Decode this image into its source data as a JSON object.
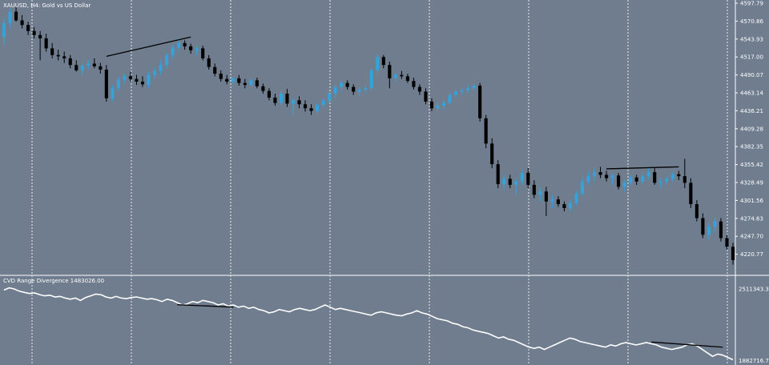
{
  "chart_data": [
    {
      "type": "candlestick",
      "title": "XAUUSD, H4:  Gold vs US Dollar",
      "y_ticks": [
        "4597.79",
        "4570.86",
        "4543.93",
        "4517.00",
        "4490.07",
        "4463.14",
        "4436.21",
        "4409.28",
        "4382.35",
        "4355.42",
        "4328.49",
        "4301.56",
        "4274.63",
        "4247.70",
        "4220.77"
      ],
      "ylim": [
        4193.84,
        4597.79
      ],
      "colors": {
        "bull": "#35a2d9",
        "bear": "#000000",
        "background": "#6f7d8f",
        "grid": "#ffffff"
      },
      "candles": [
        [
          4547,
          4575,
          4535,
          4568
        ],
        [
          4568,
          4590,
          4560,
          4585
        ],
        [
          4585,
          4592,
          4570,
          4572
        ],
        [
          4572,
          4580,
          4560,
          4565
        ],
        [
          4565,
          4570,
          4550,
          4556
        ],
        [
          4556,
          4562,
          4545,
          4550
        ],
        [
          4550,
          4556,
          4512,
          4545
        ],
        [
          4545,
          4552,
          4525,
          4530
        ],
        [
          4530,
          4538,
          4515,
          4520
        ],
        [
          4520,
          4528,
          4512,
          4518
        ],
        [
          4518,
          4525,
          4508,
          4515
        ],
        [
          4515,
          4520,
          4500,
          4505
        ],
        [
          4505,
          4512,
          4495,
          4497
        ],
        [
          4497,
          4506,
          4490,
          4504
        ],
        [
          4504,
          4512,
          4498,
          4507
        ],
        [
          4507,
          4515,
          4500,
          4503
        ],
        [
          4503,
          4508,
          4492,
          4498
        ],
        [
          4498,
          4505,
          4450,
          4455
        ],
        [
          4455,
          4475,
          4450,
          4470
        ],
        [
          4470,
          4488,
          4465,
          4483
        ],
        [
          4483,
          4492,
          4478,
          4488
        ],
        [
          4488,
          4495,
          4480,
          4484
        ],
        [
          4484,
          4490,
          4475,
          4480
        ],
        [
          4480,
          4488,
          4472,
          4476
        ],
        [
          4476,
          4495,
          4470,
          4490
        ],
        [
          4490,
          4502,
          4485,
          4496
        ],
        [
          4496,
          4512,
          4490,
          4505
        ],
        [
          4505,
          4523,
          4500,
          4520
        ],
        [
          4520,
          4535,
          4515,
          4531
        ],
        [
          4531,
          4545,
          4525,
          4538
        ],
        [
          4538,
          4542,
          4528,
          4533
        ],
        [
          4533,
          4537,
          4522,
          4527
        ],
        [
          4527,
          4534,
          4520,
          4530
        ],
        [
          4530,
          4534,
          4512,
          4515
        ],
        [
          4515,
          4520,
          4498,
          4502
        ],
        [
          4502,
          4507,
          4488,
          4492
        ],
        [
          4492,
          4497,
          4480,
          4484
        ],
        [
          4484,
          4490,
          4476,
          4480
        ],
        [
          4480,
          4487,
          4476,
          4485
        ],
        [
          4485,
          4490,
          4474,
          4478
        ],
        [
          4478,
          4484,
          4470,
          4475
        ],
        [
          4475,
          4485,
          4472,
          4482
        ],
        [
          4482,
          4486,
          4470,
          4473
        ],
        [
          4473,
          4477,
          4462,
          4466
        ],
        [
          4466,
          4470,
          4452,
          4456
        ],
        [
          4456,
          4462,
          4444,
          4448
        ],
        [
          4448,
          4466,
          4444,
          4462
        ],
        [
          4462,
          4469,
          4442,
          4447
        ],
        [
          4447,
          4455,
          4430,
          4452
        ],
        [
          4452,
          4458,
          4440,
          4446
        ],
        [
          4446,
          4452,
          4435,
          4440
        ],
        [
          4440,
          4446,
          4430,
          4436
        ],
        [
          4436,
          4448,
          4432,
          4445
        ],
        [
          4445,
          4455,
          4440,
          4452
        ],
        [
          4452,
          4465,
          4447,
          4462
        ],
        [
          4462,
          4476,
          4456,
          4472
        ],
        [
          4472,
          4482,
          4466,
          4478
        ],
        [
          4478,
          4482,
          4468,
          4472
        ],
        [
          4472,
          4476,
          4460,
          4465
        ],
        [
          4465,
          4472,
          4458,
          4468
        ],
        [
          4468,
          4475,
          4462,
          4470
        ],
        [
          4470,
          4500,
          4466,
          4497
        ],
        [
          4497,
          4522,
          4492,
          4517
        ],
        [
          4517,
          4520,
          4500,
          4505
        ],
        [
          4505,
          4510,
          4470,
          4485
        ],
        [
          4485,
          4494,
          4480,
          4490
        ],
        [
          4490,
          4496,
          4484,
          4488
        ],
        [
          4488,
          4492,
          4478,
          4481
        ],
        [
          4481,
          4486,
          4468,
          4472
        ],
        [
          4472,
          4476,
          4460,
          4465
        ],
        [
          4465,
          4470,
          4446,
          4450
        ],
        [
          4450,
          4455,
          4436,
          4440
        ],
        [
          4440,
          4448,
          4434,
          4444
        ],
        [
          4444,
          4452,
          4438,
          4448
        ],
        [
          4448,
          4464,
          4445,
          4460
        ],
        [
          4460,
          4468,
          4456,
          4465
        ],
        [
          4465,
          4470,
          4460,
          4467
        ],
        [
          4467,
          4475,
          4462,
          4470
        ],
        [
          4470,
          4477,
          4466,
          4474
        ],
        [
          4474,
          4478,
          4420,
          4425
        ],
        [
          4425,
          4430,
          4380,
          4387
        ],
        [
          4387,
          4395,
          4350,
          4356
        ],
        [
          4356,
          4362,
          4320,
          4326
        ],
        [
          4326,
          4340,
          4318,
          4334
        ],
        [
          4334,
          4340,
          4320,
          4325
        ],
        [
          4325,
          4335,
          4310,
          4330
        ],
        [
          4330,
          4348,
          4325,
          4343
        ],
        [
          4343,
          4350,
          4320,
          4325
        ],
        [
          4325,
          4332,
          4305,
          4310
        ],
        [
          4310,
          4320,
          4300,
          4315
        ],
        [
          4315,
          4322,
          4278,
          4300
        ],
        [
          4300,
          4310,
          4290,
          4303
        ],
        [
          4303,
          4308,
          4292,
          4296
        ],
        [
          4296,
          4300,
          4285,
          4290
        ],
        [
          4290,
          4302,
          4285,
          4298
        ],
        [
          4298,
          4316,
          4294,
          4312
        ],
        [
          4312,
          4335,
          4308,
          4330
        ],
        [
          4330,
          4345,
          4325,
          4338
        ],
        [
          4338,
          4350,
          4330,
          4344
        ],
        [
          4344,
          4352,
          4335,
          4340
        ],
        [
          4340,
          4346,
          4330,
          4335
        ],
        [
          4335,
          4342,
          4325,
          4339
        ],
        [
          4339,
          4343,
          4318,
          4322
        ],
        [
          4322,
          4332,
          4315,
          4328
        ],
        [
          4328,
          4340,
          4324,
          4336
        ],
        [
          4336,
          4340,
          4325,
          4330
        ],
        [
          4330,
          4342,
          4326,
          4338
        ],
        [
          4338,
          4350,
          4333,
          4344
        ],
        [
          4344,
          4350,
          4325,
          4328
        ],
        [
          4328,
          4335,
          4320,
          4330
        ],
        [
          4330,
          4338,
          4325,
          4334
        ],
        [
          4334,
          4345,
          4330,
          4341
        ],
        [
          4341,
          4346,
          4332,
          4338
        ],
        [
          4338,
          4364,
          4320,
          4328
        ],
        [
          4328,
          4335,
          4290,
          4296
        ],
        [
          4296,
          4302,
          4270,
          4275
        ],
        [
          4275,
          4282,
          4245,
          4250
        ],
        [
          4250,
          4268,
          4242,
          4262
        ],
        [
          4262,
          4276,
          4255,
          4270
        ],
        [
          4270,
          4275,
          4240,
          4245
        ],
        [
          4245,
          4250,
          4228,
          4232
        ],
        [
          4232,
          4238,
          4205,
          4212
        ]
      ],
      "trendlines": [
        {
          "from": {
            "index": 17,
            "price": 4518
          },
          "to": {
            "index": 31,
            "price": 4547
          },
          "color": "#000000"
        },
        {
          "from": {
            "index": 100,
            "price": 4349
          },
          "to": {
            "index": 112,
            "price": 4352
          },
          "color": "#000000"
        }
      ]
    },
    {
      "type": "line",
      "title": "CVD Range Divergence 1483026.00",
      "y_ticks": [
        "2511343.30",
        "1882716.70"
      ],
      "ylim": [
        1872000,
        2545000
      ],
      "colors": {
        "line": "#ffffff",
        "divergence": "#000000"
      },
      "values": [
        2500000,
        2520000,
        2510000,
        2490000,
        2480000,
        2470000,
        2475000,
        2460000,
        2450000,
        2455000,
        2440000,
        2445000,
        2430000,
        2420000,
        2430000,
        2410000,
        2435000,
        2450000,
        2465000,
        2460000,
        2440000,
        2430000,
        2445000,
        2430000,
        2425000,
        2435000,
        2440000,
        2430000,
        2420000,
        2425000,
        2415000,
        2400000,
        2420000,
        2410000,
        2390000,
        2370000,
        2380000,
        2400000,
        2390000,
        2410000,
        2400000,
        2390000,
        2370000,
        2380000,
        2360000,
        2370000,
        2350000,
        2360000,
        2340000,
        2350000,
        2330000,
        2320000,
        2300000,
        2310000,
        2330000,
        2320000,
        2310000,
        2330000,
        2340000,
        2330000,
        2320000,
        2330000,
        2350000,
        2370000,
        2350000,
        2330000,
        2340000,
        2330000,
        2320000,
        2310000,
        2300000,
        2290000,
        2280000,
        2300000,
        2310000,
        2300000,
        2290000,
        2280000,
        2275000,
        2290000,
        2300000,
        2320000,
        2300000,
        2290000,
        2270000,
        2250000,
        2240000,
        2230000,
        2210000,
        2200000,
        2180000,
        2170000,
        2150000,
        2140000,
        2130000,
        2120000,
        2100000,
        2080000,
        2090000,
        2070000,
        2060000,
        2040000,
        2020000,
        2000000,
        1990000,
        2000000,
        1980000,
        2000000,
        2020000,
        2040000,
        2060000,
        2080000,
        2070000,
        2050000,
        2040000,
        2030000,
        2020000,
        2010000,
        2000000,
        2020000,
        2010000,
        2030000,
        2040000,
        2030000,
        2020000,
        2030000,
        2040000,
        2030000,
        2020000,
        2000000,
        1990000,
        1980000,
        1990000,
        2000000,
        2020000,
        2030000,
        2010000,
        1980000,
        1950000,
        1920000,
        1940000,
        1930000,
        1910000,
        1890000
      ],
      "trendlines": [
        {
          "from": {
            "index": 34,
            "value": 2372000
          },
          "to": {
            "index": 45,
            "value": 2351000
          },
          "color": "#000000"
        },
        {
          "from": {
            "index": 127,
            "value": 2045000
          },
          "to": {
            "index": 141,
            "value": 2000000
          },
          "color": "#000000"
        }
      ]
    }
  ]
}
